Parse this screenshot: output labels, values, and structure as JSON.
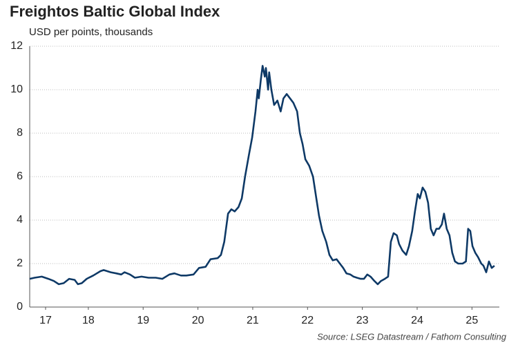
{
  "chart_data": {
    "type": "line",
    "title": "Freightos Baltic Global Index",
    "subtitle": "USD per points, thousands",
    "source": "Source: LSEG Datastream / Fathom Consulting",
    "x": [
      17.43,
      17.52,
      17.65,
      17.77,
      17.87,
      17.96,
      18.05,
      18.15,
      18.25,
      18.31,
      18.38,
      18.47,
      18.59,
      18.72,
      18.78,
      18.91,
      19.01,
      19.1,
      19.16,
      19.26,
      19.35,
      19.47,
      19.6,
      19.73,
      19.85,
      19.98,
      20.07,
      20.19,
      20.29,
      20.42,
      20.52,
      20.64,
      20.73,
      20.86,
      20.92,
      20.98,
      21.05,
      21.11,
      21.17,
      21.24,
      21.3,
      21.36,
      21.43,
      21.49,
      21.55,
      21.59,
      21.61,
      21.65,
      21.68,
      21.72,
      21.74,
      21.78,
      21.8,
      21.84,
      21.89,
      21.95,
      22.01,
      22.06,
      22.12,
      22.18,
      22.24,
      22.31,
      22.36,
      22.41,
      22.46,
      22.53,
      22.6,
      22.66,
      22.71,
      22.77,
      22.84,
      22.9,
      22.96,
      23.03,
      23.09,
      23.15,
      23.21,
      23.28,
      23.34,
      23.4,
      23.47,
      23.53,
      23.59,
      23.65,
      23.72,
      23.78,
      23.84,
      23.91,
      23.97,
      24.02,
      24.07,
      24.13,
      24.17,
      24.23,
      24.3,
      24.35,
      24.41,
      24.46,
      24.51,
      24.55,
      24.6,
      24.65,
      24.7,
      24.75,
      24.8,
      24.85,
      24.9,
      24.95,
      24.99,
      25.04,
      25.09,
      25.14,
      25.19,
      25.25,
      25.33,
      25.39,
      25.43,
      25.47,
      25.51,
      25.56,
      25.61,
      25.67,
      25.71,
      25.76,
      25.81,
      25.86,
      25.91
    ],
    "series": [
      {
        "name": "Freightos Baltic Global Index",
        "color": "#0e3966",
        "values": [
          1.3,
          1.35,
          1.4,
          1.3,
          1.2,
          1.05,
          1.1,
          1.3,
          1.25,
          1.05,
          1.1,
          1.3,
          1.45,
          1.65,
          1.7,
          1.6,
          1.55,
          1.5,
          1.6,
          1.5,
          1.35,
          1.4,
          1.35,
          1.35,
          1.3,
          1.5,
          1.55,
          1.45,
          1.45,
          1.5,
          1.8,
          1.85,
          2.2,
          2.25,
          2.4,
          3.0,
          4.3,
          4.5,
          4.4,
          4.6,
          5.0,
          6.0,
          7.0,
          7.8,
          9.0,
          10.0,
          9.6,
          10.5,
          11.1,
          10.6,
          11.0,
          10.0,
          10.8,
          10.0,
          9.3,
          9.5,
          9.0,
          9.6,
          9.8,
          9.6,
          9.4,
          9.0,
          8.0,
          7.5,
          6.8,
          6.5,
          6.0,
          5.0,
          4.2,
          3.5,
          3.0,
          2.4,
          2.15,
          2.2,
          2.0,
          1.8,
          1.55,
          1.5,
          1.4,
          1.35,
          1.3,
          1.3,
          1.5,
          1.4,
          1.2,
          1.05,
          1.2,
          1.3,
          1.4,
          3.0,
          3.4,
          3.3,
          2.9,
          2.6,
          2.4,
          2.8,
          3.5,
          4.4,
          5.2,
          5.0,
          5.5,
          5.3,
          4.8,
          3.6,
          3.3,
          3.6,
          3.6,
          3.8,
          4.3,
          3.6,
          3.3,
          2.5,
          2.1,
          2.0,
          2.0,
          2.1,
          3.6,
          3.5,
          2.8,
          2.5,
          2.3,
          2.0,
          1.9,
          1.6,
          2.1,
          1.8,
          1.9
        ]
      }
    ],
    "xlim": [
      17.43,
      26.0
    ],
    "xticks": [
      {
        "value": 17.72,
        "label": "17"
      },
      {
        "value": 18.5,
        "label": "18"
      },
      {
        "value": 19.5,
        "label": "19"
      },
      {
        "value": 20.5,
        "label": "20"
      },
      {
        "value": 21.5,
        "label": "21"
      },
      {
        "value": 22.5,
        "label": "22"
      },
      {
        "value": 23.5,
        "label": "23"
      },
      {
        "value": 24.5,
        "label": "24"
      },
      {
        "value": 25.5,
        "label": "25"
      }
    ],
    "ylim": [
      0,
      12
    ],
    "yticks": [
      0,
      2,
      4,
      6,
      8,
      10,
      12
    ],
    "grid": true
  }
}
